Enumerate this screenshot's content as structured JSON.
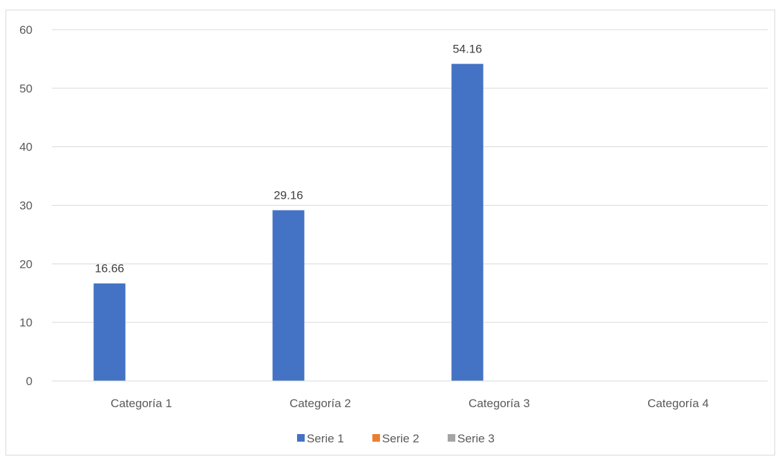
{
  "chart_data": {
    "type": "bar",
    "categories": [
      "Categoría 1",
      "Categoría 2",
      "Categoría 3",
      "Categoría 4"
    ],
    "series": [
      {
        "name": "Serie 1",
        "color": "#4472c4",
        "values": [
          16.66,
          29.16,
          54.16,
          null
        ]
      },
      {
        "name": "Serie 2",
        "color": "#ed7d31",
        "values": [
          null,
          null,
          null,
          null
        ]
      },
      {
        "name": "Serie 3",
        "color": "#a5a5a5",
        "values": [
          null,
          null,
          null,
          null
        ]
      }
    ],
    "data_labels": [
      "16.66",
      "29.16",
      "54.16"
    ],
    "y_ticks": [
      "0",
      "10",
      "20",
      "30",
      "40",
      "50",
      "60"
    ],
    "ylim": [
      0,
      60
    ],
    "title": "",
    "xlabel": "",
    "ylabel": "",
    "grid": true,
    "legend_position": "bottom",
    "gridline_color": "#d9d9d9"
  }
}
